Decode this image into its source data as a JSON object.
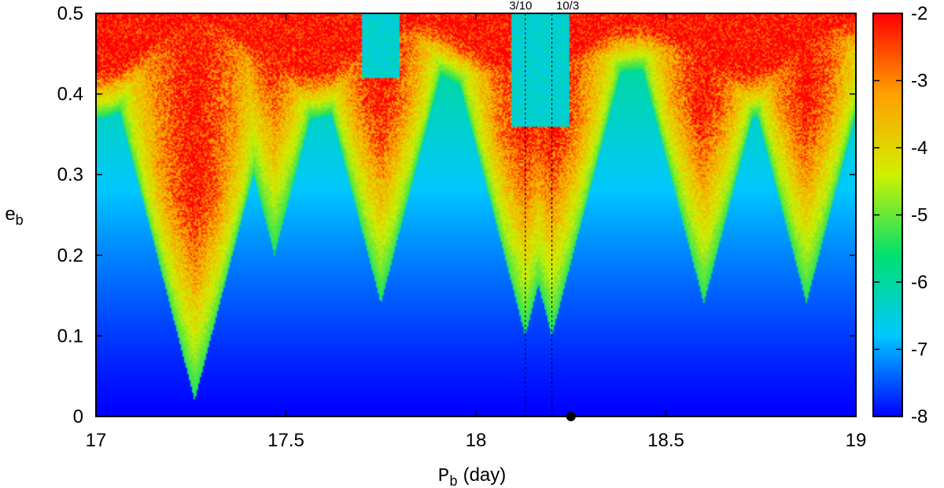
{
  "chart_data": {
    "type": "heatmap",
    "xlabel": {
      "main": "P",
      "sub": "b",
      "unit": "(day)"
    },
    "ylabel": {
      "main": "e",
      "sub": "b"
    },
    "xlim": [
      17,
      19
    ],
    "ylim": [
      0,
      0.5
    ],
    "x_ticks": [
      "17",
      "17.5",
      "18",
      "18.5",
      "19"
    ],
    "y_ticks": [
      "0",
      "0.1",
      "0.2",
      "0.3",
      "0.4",
      "0.5"
    ],
    "colorbar": {
      "range": [
        -8,
        -2
      ],
      "ticks": [
        "-8",
        "-7",
        "-6",
        "-5",
        "-4",
        "-3",
        "-2"
      ],
      "colormap": [
        "#0000ff",
        "#00c8ff",
        "#00e070",
        "#d0f000",
        "#ffa000",
        "#ff0000"
      ]
    },
    "resonances": [
      {
        "label": "3/10",
        "x": 18.13
      },
      {
        "label": "10/3",
        "x": 18.2
      }
    ],
    "marker": {
      "x": 18.25,
      "y": 0.0
    },
    "chaotic_tongues": [
      {
        "x": 17.26,
        "y_tip": 0.02,
        "dark_edge": 0.9
      },
      {
        "x": 17.47,
        "y_tip": 0.2
      },
      {
        "x": 17.75,
        "y_tip": 0.14
      },
      {
        "x": 18.13,
        "y_tip": 0.1
      },
      {
        "x": 18.2,
        "y_tip": 0.1
      },
      {
        "x": 18.6,
        "y_tip": 0.14
      },
      {
        "x": 18.87,
        "y_tip": 0.14
      }
    ]
  }
}
